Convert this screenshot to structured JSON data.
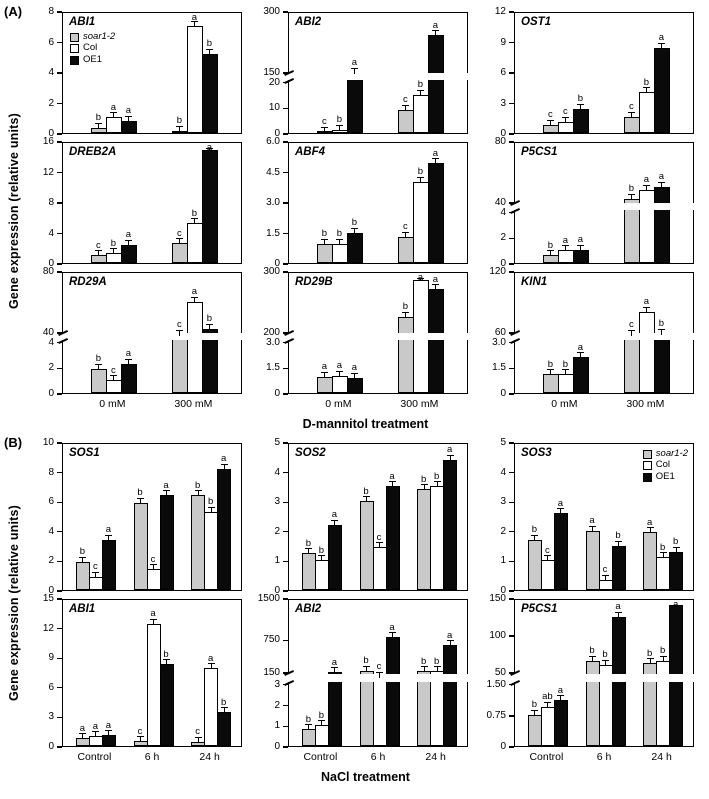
{
  "figure": {
    "panel_a": {
      "label": "(A)",
      "y_axis_title": "Gene expression (relative units)",
      "x_axis_title": "D-mannitol treatment",
      "x_categories": [
        "0 mM",
        "300 mM"
      ]
    },
    "panel_b": {
      "label": "(B)",
      "y_axis_title": "Gene expression (relative units)",
      "x_axis_title": "NaCl treatment",
      "x_categories": [
        "Control",
        "6 h",
        "24 h"
      ]
    },
    "legend": {
      "items": [
        {
          "label": "soar1-2",
          "color": "#c9c9c9",
          "italic": true
        },
        {
          "label": "Col",
          "color": "#ffffff",
          "italic": false
        },
        {
          "label": "OE1",
          "color": "#0a0a0a",
          "italic": false
        }
      ]
    },
    "colors": {
      "bar_border": "#000000",
      "frame": "#000000"
    }
  },
  "chart_data": [
    {
      "panel": "A",
      "title": "ABI1",
      "type": "bar",
      "legend": "left",
      "categories": [
        "0 mM",
        "300 mM"
      ],
      "series": [
        {
          "name": "soar1-2",
          "values": [
            0.35,
            0.15
          ]
        },
        {
          "name": "Col",
          "values": [
            1.05,
            7.0
          ]
        },
        {
          "name": "OE1",
          "values": [
            0.8,
            5.2
          ]
        }
      ],
      "letters": [
        [
          "b",
          "a",
          "a"
        ],
        [
          "b",
          "a",
          "b"
        ]
      ],
      "axis": {
        "segments": [
          {
            "min": 0,
            "max": 8,
            "tick_vals": [
              0,
              2,
              4,
              6,
              8
            ],
            "tick_labels": [
              "0",
              "2",
              "4",
              "6",
              "8"
            ]
          }
        ]
      }
    },
    {
      "panel": "A",
      "title": "ABI2",
      "type": "bar",
      "categories": [
        "0 mM",
        "300 mM"
      ],
      "series": [
        {
          "name": "soar1-2",
          "values": [
            0.4,
            9
          ]
        },
        {
          "name": "Col",
          "values": [
            1.2,
            15
          ]
        },
        {
          "name": "OE1",
          "values": [
            140,
            240
          ]
        }
      ],
      "letters": [
        [
          "c",
          "b",
          "a"
        ],
        [
          "c",
          "b",
          "a"
        ]
      ],
      "axis": {
        "segments": [
          {
            "min": 0,
            "max": 20,
            "tick_vals": [
              0,
              10,
              20
            ],
            "tick_labels": [
              "0",
              "10",
              "20"
            ]
          },
          {
            "min": 150,
            "max": 300,
            "tick_vals": [
              150,
              300
            ],
            "tick_labels": [
              "150",
              "300"
            ]
          }
        ]
      }
    },
    {
      "panel": "A",
      "title": "OST1",
      "type": "bar",
      "categories": [
        "0 mM",
        "300 mM"
      ],
      "series": [
        {
          "name": "soar1-2",
          "values": [
            0.8,
            1.6
          ]
        },
        {
          "name": "Col",
          "values": [
            1.1,
            4.0
          ]
        },
        {
          "name": "OE1",
          "values": [
            2.4,
            8.4
          ]
        }
      ],
      "letters": [
        [
          "c",
          "c",
          "b"
        ],
        [
          "c",
          "b",
          "a"
        ]
      ],
      "axis": {
        "segments": [
          {
            "min": 0,
            "max": 12,
            "tick_vals": [
              0,
              3,
              6,
              9,
              12
            ],
            "tick_labels": [
              "0",
              "3",
              "6",
              "9",
              "12"
            ]
          }
        ]
      }
    },
    {
      "panel": "A",
      "title": "DREB2A",
      "type": "bar",
      "categories": [
        "0 mM",
        "300 mM"
      ],
      "series": [
        {
          "name": "soar1-2",
          "values": [
            1.0,
            2.6
          ]
        },
        {
          "name": "Col",
          "values": [
            1.3,
            5.2
          ]
        },
        {
          "name": "OE1",
          "values": [
            2.4,
            14.8
          ]
        }
      ],
      "letters": [
        [
          "c",
          "b",
          "a"
        ],
        [
          "c",
          "b",
          "a"
        ]
      ],
      "axis": {
        "segments": [
          {
            "min": 0,
            "max": 16,
            "tick_vals": [
              0,
              4,
              8,
              12,
              16
            ],
            "tick_labels": [
              "0",
              "4",
              "8",
              "12",
              "16"
            ]
          }
        ]
      }
    },
    {
      "panel": "A",
      "title": "ABF4",
      "type": "bar",
      "categories": [
        "0 mM",
        "300 mM"
      ],
      "series": [
        {
          "name": "soar1-2",
          "values": [
            0.95,
            1.3
          ]
        },
        {
          "name": "Col",
          "values": [
            0.95,
            4.0
          ]
        },
        {
          "name": "OE1",
          "values": [
            1.5,
            4.9
          ]
        }
      ],
      "letters": [
        [
          "b",
          "b",
          "b"
        ],
        [
          "c",
          "b",
          "a"
        ]
      ],
      "axis": {
        "segments": [
          {
            "min": 0,
            "max": 6,
            "tick_vals": [
              0,
              1.5,
              3,
              4.5,
              6
            ],
            "tick_labels": [
              "0",
              "1.5",
              "3.0",
              "4.5",
              "6.0"
            ]
          }
        ]
      }
    },
    {
      "panel": "A",
      "title": "P5CS1",
      "type": "bar",
      "categories": [
        "0 mM",
        "300 mM"
      ],
      "series": [
        {
          "name": "soar1-2",
          "values": [
            0.6,
            42
          ]
        },
        {
          "name": "Col",
          "values": [
            1.0,
            48
          ]
        },
        {
          "name": "OE1",
          "values": [
            1.05,
            50
          ]
        }
      ],
      "letters": [
        [
          "b",
          "a",
          "a"
        ],
        [
          "b",
          "a",
          "a"
        ]
      ],
      "axis": {
        "segments": [
          {
            "min": 0,
            "max": 4,
            "tick_vals": [
              0,
              2,
              4
            ],
            "tick_labels": [
              "0",
              "2",
              "4"
            ]
          },
          {
            "min": 40,
            "max": 80,
            "tick_vals": [
              40,
              80
            ],
            "tick_labels": [
              "40",
              "80"
            ]
          }
        ]
      }
    },
    {
      "panel": "A",
      "title": "RD29A",
      "type": "bar",
      "categories": [
        "0 mM",
        "300 mM"
      ],
      "series": [
        {
          "name": "soar1-2",
          "values": [
            1.9,
            30
          ]
        },
        {
          "name": "Col",
          "values": [
            1.0,
            60
          ]
        },
        {
          "name": "OE1",
          "values": [
            2.3,
            42
          ]
        }
      ],
      "letters": [
        [
          "b",
          "c",
          "a"
        ],
        [
          "c",
          "a",
          "b"
        ]
      ],
      "axis": {
        "segments": [
          {
            "min": 0,
            "max": 4,
            "tick_vals": [
              0,
              2,
              4
            ],
            "tick_labels": [
              "0",
              "2",
              "4"
            ]
          },
          {
            "min": 40,
            "max": 80,
            "tick_vals": [
              40,
              80
            ],
            "tick_labels": [
              "40",
              "80"
            ]
          }
        ]
      }
    },
    {
      "panel": "A",
      "title": "RD29B",
      "type": "bar",
      "categories": [
        "0 mM",
        "300 mM"
      ],
      "series": [
        {
          "name": "soar1-2",
          "values": [
            0.95,
            225
          ]
        },
        {
          "name": "Col",
          "values": [
            1.0,
            285
          ]
        },
        {
          "name": "OE1",
          "values": [
            0.9,
            270
          ]
        }
      ],
      "letters": [
        [
          "a",
          "a",
          "a"
        ],
        [
          "b",
          "a",
          "a"
        ]
      ],
      "axis": {
        "segments": [
          {
            "min": 0,
            "max": 3,
            "tick_vals": [
              0,
              1.5,
              3
            ],
            "tick_labels": [
              "0",
              "1.5",
              "3.0"
            ]
          },
          {
            "min": 200,
            "max": 300,
            "tick_vals": [
              200,
              300
            ],
            "tick_labels": [
              "200",
              "300"
            ]
          }
        ]
      }
    },
    {
      "panel": "A",
      "title": "KIN1",
      "type": "bar",
      "categories": [
        "0 mM",
        "300 mM"
      ],
      "series": [
        {
          "name": "soar1-2",
          "values": [
            1.1,
            45
          ]
        },
        {
          "name": "Col",
          "values": [
            1.1,
            80
          ]
        },
        {
          "name": "OE1",
          "values": [
            2.1,
            50
          ]
        }
      ],
      "letters": [
        [
          "b",
          "b",
          "a"
        ],
        [
          "c",
          "a",
          "b"
        ]
      ],
      "axis": {
        "segments": [
          {
            "min": 0,
            "max": 3,
            "tick_vals": [
              0,
              1.5,
              3
            ],
            "tick_labels": [
              "0",
              "1.5",
              "3.0"
            ]
          },
          {
            "min": 60,
            "max": 120,
            "tick_vals": [
              60,
              120
            ],
            "tick_labels": [
              "60",
              "120"
            ]
          }
        ]
      }
    },
    {
      "panel": "B",
      "title": "SOS1",
      "type": "bar",
      "categories": [
        "Control",
        "6 h",
        "24 h"
      ],
      "series": [
        {
          "name": "soar1-2",
          "values": [
            1.9,
            5.9,
            6.4
          ]
        },
        {
          "name": "Col",
          "values": [
            0.9,
            1.4,
            5.3
          ]
        },
        {
          "name": "OE1",
          "values": [
            3.4,
            6.4,
            8.2
          ]
        }
      ],
      "letters": [
        [
          "b",
          "c",
          "a"
        ],
        [
          "b",
          "c",
          "a"
        ],
        [
          "b",
          "b",
          "a"
        ]
      ],
      "axis": {
        "segments": [
          {
            "min": 0,
            "max": 10,
            "tick_vals": [
              0,
              2,
              4,
              6,
              8,
              10
            ],
            "tick_labels": [
              "0",
              "2",
              "4",
              "6",
              "8",
              "10"
            ]
          }
        ]
      }
    },
    {
      "panel": "B",
      "title": "SOS2",
      "type": "bar",
      "categories": [
        "Control",
        "6 h",
        "24 h"
      ],
      "series": [
        {
          "name": "soar1-2",
          "values": [
            1.25,
            3.0,
            3.4
          ]
        },
        {
          "name": "Col",
          "values": [
            1.0,
            1.45,
            3.5
          ]
        },
        {
          "name": "OE1",
          "values": [
            2.2,
            3.5,
            4.4
          ]
        }
      ],
      "letters": [
        [
          "b",
          "b",
          "a"
        ],
        [
          "b",
          "c",
          "a"
        ],
        [
          "b",
          "b",
          "a"
        ]
      ],
      "axis": {
        "segments": [
          {
            "min": 0,
            "max": 5,
            "tick_vals": [
              0,
              1,
              2,
              3,
              4,
              5
            ],
            "tick_labels": [
              "0",
              "1",
              "2",
              "3",
              "4",
              "5"
            ]
          }
        ]
      }
    },
    {
      "panel": "B",
      "title": "SOS3",
      "type": "bar",
      "legend": "right",
      "categories": [
        "Control",
        "6 h",
        "24 h"
      ],
      "series": [
        {
          "name": "soar1-2",
          "values": [
            1.7,
            2.0,
            1.95
          ]
        },
        {
          "name": "Col",
          "values": [
            1.0,
            0.35,
            1.1
          ]
        },
        {
          "name": "OE1",
          "values": [
            2.6,
            1.5,
            1.3
          ]
        }
      ],
      "letters": [
        [
          "b",
          "c",
          "a"
        ],
        [
          "a",
          "c",
          "b"
        ],
        [
          "a",
          "b",
          "b"
        ]
      ],
      "axis": {
        "segments": [
          {
            "min": 0,
            "max": 5,
            "tick_vals": [
              0,
              1,
              2,
              3,
              4,
              5
            ],
            "tick_labels": [
              "0",
              "1",
              "2",
              "3",
              "4",
              "5"
            ]
          }
        ]
      }
    },
    {
      "panel": "B",
      "title": "ABI1",
      "type": "bar",
      "categories": [
        "Control",
        "6 h",
        "24 h"
      ],
      "series": [
        {
          "name": "soar1-2",
          "values": [
            0.8,
            0.5,
            0.45
          ]
        },
        {
          "name": "Col",
          "values": [
            1.0,
            12.4,
            7.9
          ]
        },
        {
          "name": "OE1",
          "values": [
            1.1,
            8.3,
            3.4
          ]
        }
      ],
      "letters": [
        [
          "a",
          "a",
          "a"
        ],
        [
          "c",
          "a",
          "b"
        ],
        [
          "c",
          "a",
          "b"
        ]
      ],
      "axis": {
        "segments": [
          {
            "min": 0,
            "max": 15,
            "tick_vals": [
              0,
              3,
              6,
              9,
              12,
              15
            ],
            "tick_labels": [
              "0",
              "3",
              "6",
              "9",
              "12",
              "15"
            ]
          }
        ]
      }
    },
    {
      "panel": "B",
      "title": "ABI2",
      "type": "bar",
      "categories": [
        "Control",
        "6 h",
        "24 h"
      ],
      "series": [
        {
          "name": "soar1-2",
          "values": [
            0.8,
            170,
            160
          ]
        },
        {
          "name": "Col",
          "values": [
            1.0,
            90,
            160
          ]
        },
        {
          "name": "OE1",
          "values": [
            150,
            780,
            640
          ]
        }
      ],
      "letters": [
        [
          "b",
          "b",
          "a"
        ],
        [
          "b",
          "c",
          "a"
        ],
        [
          "b",
          "b",
          "a"
        ]
      ],
      "axis": {
        "segments": [
          {
            "min": 0,
            "max": 3,
            "tick_vals": [
              0,
              1,
              2,
              3
            ],
            "tick_labels": [
              "0",
              "1",
              "2",
              "3"
            ]
          },
          {
            "min": 150,
            "max": 1500,
            "tick_vals": [
              150,
              750,
              1500
            ],
            "tick_labels": [
              "150",
              "750",
              "1500"
            ]
          }
        ]
      }
    },
    {
      "panel": "B",
      "title": "P5CS1",
      "type": "bar",
      "categories": [
        "Control",
        "6 h",
        "24 h"
      ],
      "series": [
        {
          "name": "soar1-2",
          "values": [
            0.75,
            65,
            62
          ]
        },
        {
          "name": "Col",
          "values": [
            0.95,
            60,
            65
          ]
        },
        {
          "name": "OE1",
          "values": [
            1.1,
            125,
            140
          ]
        }
      ],
      "letters": [
        [
          "b",
          "ab",
          "a"
        ],
        [
          "b",
          "b",
          "a"
        ],
        [
          "b",
          "b",
          "a"
        ]
      ],
      "axis": {
        "segments": [
          {
            "min": 0,
            "max": 1.5,
            "tick_vals": [
              0,
              0.75,
              1.5
            ],
            "tick_labels": [
              "0",
              "0.75",
              "1.50"
            ]
          },
          {
            "min": 50,
            "max": 150,
            "tick_vals": [
              50,
              100,
              150
            ],
            "tick_labels": [
              "50",
              "100",
              "150"
            ]
          }
        ]
      }
    }
  ]
}
